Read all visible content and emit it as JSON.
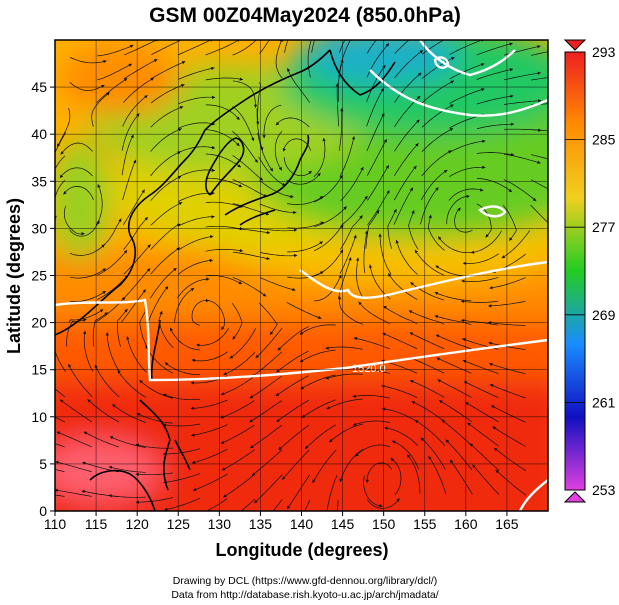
{
  "title": "GSM 00Z04May2024 (850.0hPa)",
  "x_axis": {
    "label": "Longitude (degrees)",
    "range": [
      110,
      170
    ],
    "ticks": [
      110,
      115,
      120,
      125,
      130,
      135,
      140,
      145,
      150,
      155,
      160,
      165
    ]
  },
  "y_axis": {
    "label": "Latitude  (degrees)",
    "range": [
      0,
      50
    ],
    "ticks": [
      0,
      5,
      10,
      15,
      20,
      25,
      30,
      35,
      40,
      45
    ]
  },
  "colorbar": {
    "range": [
      253,
      293
    ],
    "ticks": [
      253,
      261,
      269,
      277,
      285,
      293
    ],
    "colors": [
      "#e040e0",
      "#1010c0",
      "#1a8cff",
      "#22cc22",
      "#f0d020",
      "#ff8c00",
      "#ee2020"
    ]
  },
  "contour_label": "1520.0",
  "credits": {
    "line1": "Drawing by DCL (https://www.gfd-dennou.org/library/dcl/)",
    "line2": "Data from http://database.rish.kyoto-u.ac.jp/arch/jmadata/"
  }
}
